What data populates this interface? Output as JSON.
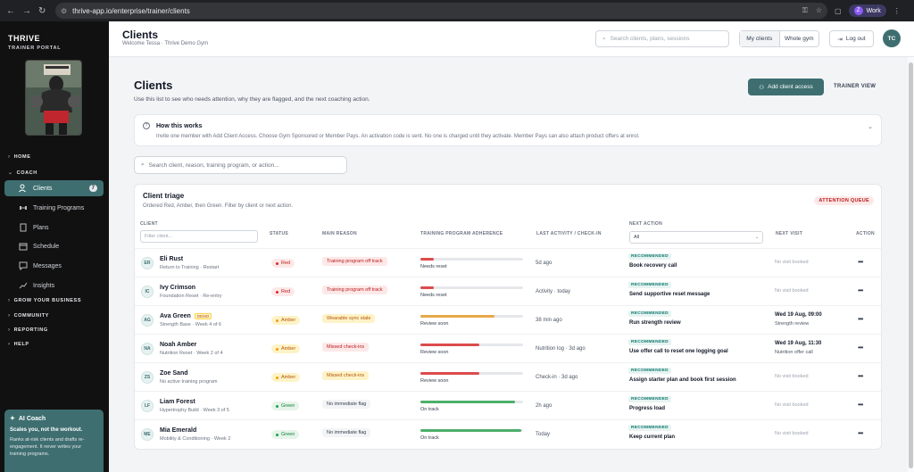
{
  "browser": {
    "url": "thrive-app.io/enterprise/trainer/clients",
    "profile_initial": "Z",
    "profile_label": "Work"
  },
  "brand": {
    "title": "THRIVE",
    "subtitle": "TRAINER PORTAL"
  },
  "sidebar": {
    "sections": {
      "home": "HOME",
      "coach": "COACH",
      "grow": "GROW YOUR BUSINESS",
      "community": "COMMUNITY",
      "reporting": "REPORTING",
      "help": "HELP"
    },
    "items": [
      {
        "label": "Clients",
        "count": "7",
        "icon": "users-icon"
      },
      {
        "label": "Training Programs",
        "icon": "dumbbell-icon"
      },
      {
        "label": "Plans",
        "icon": "document-icon"
      },
      {
        "label": "Schedule",
        "icon": "calendar-icon"
      },
      {
        "label": "Messages",
        "icon": "chat-icon"
      },
      {
        "label": "Insights",
        "icon": "trend-icon"
      }
    ],
    "ai": {
      "title": "AI Coach",
      "tagline": "Scales you, not the workout.",
      "desc": "Ranks at-risk clients and drafts re-engagement. It never writes your training programs."
    }
  },
  "header": {
    "title": "Clients",
    "subtitle": "Welcome Tessa · Thrive Demo Gym",
    "search_placeholder": "Search clients, plans, sessions",
    "seg_my": "My clients",
    "seg_whole": "Whole gym",
    "logout": "Log out",
    "avatar": "TC"
  },
  "page": {
    "title": "Clients",
    "subtitle": "Use this list to see who needs attention, why they are flagged, and the next coaching action.",
    "add_button": "Add client access",
    "trainer_view": "TRAINER VIEW"
  },
  "how": {
    "title": "How this works",
    "desc": "Invite one member with Add Client Access. Choose Gym Sponsored or Member Pays. An activation code is sent. No one is charged until they activate. Member Pays can also attach product offers at enrol."
  },
  "search": {
    "placeholder": "Search client, reason, training program, or action..."
  },
  "triage": {
    "title": "Client triage",
    "subtitle": "Ordered Red, Amber, then Green. Filter by client or next action.",
    "badge": "ATTENTION QUEUE",
    "columns": {
      "client": "CLIENT",
      "status": "STATUS",
      "reason": "MAIN REASON",
      "adherence": "TRAINING PROGRAM ADHERENCE",
      "activity": "LAST ACTIVITY / CHECK-IN",
      "next_action": "NEXT ACTION",
      "next_visit": "NEXT VISIT",
      "action": "ACTION"
    },
    "filter_placeholder": "Filter client...",
    "next_action_filter": "All",
    "rows": [
      {
        "initials": "ER",
        "name": "Eli Rust",
        "program": "Return to Training · Restart",
        "status": "Red",
        "status_level": "red",
        "reason": "Training program off track",
        "reason_level": "red",
        "adherence": 0.13,
        "bar_color": "#dc4b4b",
        "adherence_label": "Needs reset",
        "activity": "5d ago",
        "rec": "RECOMMENDED",
        "action": "Book recovery call",
        "visit": "No visit booked",
        "visit_sub": ""
      },
      {
        "initials": "IC",
        "name": "Ivy Crimson",
        "program": "Foundation Reset · Re-entry",
        "status": "Red",
        "status_level": "red",
        "reason": "Training program off track",
        "reason_level": "red",
        "adherence": 0.13,
        "bar_color": "#dc4b4b",
        "adherence_label": "Needs reset",
        "activity": "Activity · today",
        "rec": "RECOMMENDED",
        "action": "Send supportive reset message",
        "visit": "No visit booked",
        "visit_sub": ""
      },
      {
        "initials": "AG",
        "name": "Ava Green",
        "demo": "DEMO",
        "program": "Strength Base · Week 4 of 6",
        "status": "Amber",
        "status_level": "amber",
        "reason": "Wearable sync stale",
        "reason_level": "amber",
        "adherence": 0.72,
        "bar_color": "#e8a94a",
        "adherence_label": "Review soon",
        "activity": "38 min ago",
        "rec": "RECOMMENDED",
        "action": "Run strength review",
        "visit": "Wed 19 Aug, 09:00",
        "visit_sub": "Strength review"
      },
      {
        "initials": "NA",
        "name": "Noah Amber",
        "program": "Nutrition Reset · Week 2 of 4",
        "status": "Amber",
        "status_level": "amber",
        "reason": "Missed check-ins",
        "reason_level": "red",
        "adherence": 0.57,
        "bar_color": "#dc4b4b",
        "adherence_label": "Review soon",
        "activity": "Nutrition log · 3d ago",
        "rec": "RECOMMENDED",
        "action": "Use offer call to reset one logging goal",
        "visit": "Wed 19 Aug, 11:30",
        "visit_sub": "Nutrition offer call"
      },
      {
        "initials": "ZS",
        "name": "Zoe Sand",
        "program": "No active training program",
        "status": "Amber",
        "status_level": "amber",
        "reason": "Missed check-ins",
        "reason_level": "amber",
        "adherence": 0.57,
        "bar_color": "#dc4b4b",
        "adherence_label": "Review soon",
        "activity": "Check-in · 3d ago",
        "rec": "RECOMMENDED",
        "action": "Assign starter plan and book first session",
        "visit": "No visit booked",
        "visit_sub": ""
      },
      {
        "initials": "LF",
        "name": "Liam Forest",
        "program": "Hypertrophy Build · Week 3 of 5",
        "status": "Green",
        "status_level": "green",
        "reason": "No immediate flag",
        "reason_level": "gray",
        "adherence": 0.92,
        "bar_color": "#4caf6a",
        "adherence_label": "On track",
        "activity": "2h ago",
        "rec": "RECOMMENDED",
        "action": "Progress load",
        "visit": "No visit booked",
        "visit_sub": ""
      },
      {
        "initials": "ME",
        "name": "Mia Emerald",
        "program": "Mobility & Conditioning · Week 2",
        "status": "Green",
        "status_level": "green",
        "reason": "No immediate flag",
        "reason_level": "gray",
        "adherence": 0.98,
        "bar_color": "#4caf6a",
        "adherence_label": "On track",
        "activity": "Today",
        "rec": "RECOMMENDED",
        "action": "Keep current plan",
        "visit": "No visit booked",
        "visit_sub": ""
      }
    ]
  }
}
